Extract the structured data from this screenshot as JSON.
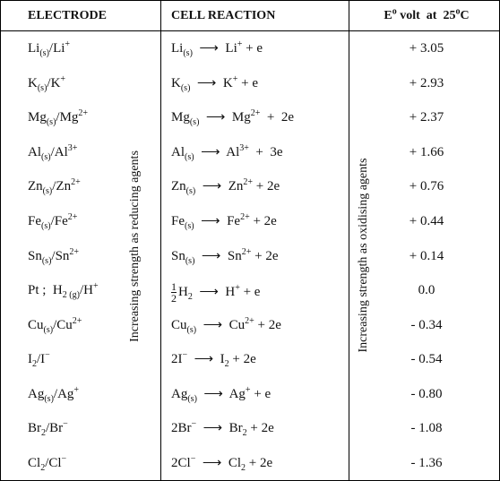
{
  "header": {
    "electrode": "ELECTRODE",
    "reaction": "CELL REACTION",
    "potential": [
      "E",
      {
        "sup": "o"
      },
      " volt  at  25",
      {
        "sup": "o"
      },
      "C"
    ]
  },
  "side_labels": {
    "reducing": "Increasing strength as reducing agents",
    "oxidising": "Increasing strength as oxidising agents"
  },
  "table": {
    "rows": [
      {
        "electrode": [
          "Li",
          {
            "sub": "(s)"
          },
          "/Li",
          {
            "sup": "+"
          }
        ],
        "reaction": [
          "Li",
          {
            "sub": "(s)"
          },
          "  ⟶  Li",
          {
            "sup": "+"
          },
          " + e"
        ],
        "potential": "+ 3.05"
      },
      {
        "electrode": [
          "K",
          {
            "sub": "(s)"
          },
          "/K",
          {
            "sup": "+"
          }
        ],
        "reaction": [
          "K",
          {
            "sub": "(s)"
          },
          "  ⟶  K",
          {
            "sup": "+"
          },
          " + e"
        ],
        "potential": "+ 2.93"
      },
      {
        "electrode": [
          "Mg",
          {
            "sub": "(s)"
          },
          "/Mg",
          {
            "sup": "2+"
          }
        ],
        "reaction": [
          "Mg",
          {
            "sub": "(s)"
          },
          "  ⟶  Mg",
          {
            "sup": "2+"
          },
          "  +  2e"
        ],
        "potential": "+ 2.37"
      },
      {
        "electrode": [
          "Al",
          {
            "sub": "(s)"
          },
          "/Al",
          {
            "sup": "3+"
          }
        ],
        "reaction": [
          "Al",
          {
            "sub": "(s)"
          },
          "  ⟶  Al",
          {
            "sup": "3+"
          },
          "  +  3e"
        ],
        "potential": "+ 1.66"
      },
      {
        "electrode": [
          "Zn",
          {
            "sub": "(s)"
          },
          "/Zn",
          {
            "sup": "2+"
          }
        ],
        "reaction": [
          "Zn",
          {
            "sub": "(s)"
          },
          "  ⟶  Zn",
          {
            "sup": "2+"
          },
          " + 2e"
        ],
        "potential": "+ 0.76"
      },
      {
        "electrode": [
          "Fe",
          {
            "sub": "(s)"
          },
          "/Fe",
          {
            "sup": "2+"
          }
        ],
        "reaction": [
          "Fe",
          {
            "sub": "(s)"
          },
          "  ⟶  Fe",
          {
            "sup": "2+"
          },
          " + 2e"
        ],
        "potential": "+ 0.44"
      },
      {
        "electrode": [
          "Sn",
          {
            "sub": "(s)"
          },
          "/Sn",
          {
            "sup": "2+"
          }
        ],
        "reaction": [
          "Sn",
          {
            "sub": "(s)"
          },
          "  ⟶  Sn",
          {
            "sup": "2+"
          },
          " + 2e"
        ],
        "potential": "+ 0.14"
      },
      {
        "electrode": [
          "Pt ;  H",
          {
            "sub": "2 (g)"
          },
          "/H",
          {
            "sup": "+"
          }
        ],
        "reaction": [
          {
            "frac": {
              "num": "1",
              "den": "2"
            }
          },
          "H",
          {
            "sub": "2"
          },
          "  ⟶  H",
          {
            "sup": "+"
          },
          " + e"
        ],
        "potential": "0.0"
      },
      {
        "electrode": [
          "Cu",
          {
            "sub": "(s)"
          },
          "/Cu",
          {
            "sup": "2+"
          }
        ],
        "reaction": [
          "Cu",
          {
            "sub": "(s)"
          },
          "  ⟶  Cu",
          {
            "sup": "2+"
          },
          " + 2e"
        ],
        "potential": "- 0.34"
      },
      {
        "electrode": [
          "I",
          {
            "sub": "2"
          },
          "/I",
          {
            "sup": "−"
          }
        ],
        "reaction": [
          "2I",
          {
            "sup": "−"
          },
          "  ⟶  I",
          {
            "sub": "2"
          },
          " + 2e"
        ],
        "potential": "- 0.54"
      },
      {
        "electrode": [
          "Ag",
          {
            "sub": "(s)"
          },
          "/Ag",
          {
            "sup": "+"
          }
        ],
        "reaction": [
          "Ag",
          {
            "sub": "(s)"
          },
          "  ⟶  Ag",
          {
            "sup": "+"
          },
          " + e"
        ],
        "potential": "- 0.80"
      },
      {
        "electrode": [
          "Br",
          {
            "sub": "2"
          },
          "/Br",
          {
            "sup": "−"
          }
        ],
        "reaction": [
          "2Br",
          {
            "sup": "−"
          },
          "  ⟶  Br",
          {
            "sub": "2"
          },
          " + 2e"
        ],
        "potential": "- 1.08"
      },
      {
        "electrode": [
          "Cl",
          {
            "sub": "2"
          },
          "/Cl",
          {
            "sup": "−"
          }
        ],
        "reaction": [
          "2Cl",
          {
            "sup": "−"
          },
          "  ⟶  Cl",
          {
            "sub": "2"
          },
          " + 2e"
        ],
        "potential": "- 1.36"
      }
    ]
  }
}
